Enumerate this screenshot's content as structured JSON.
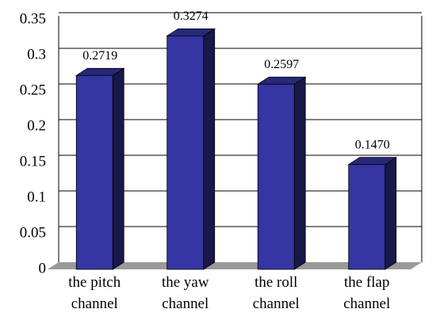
{
  "chart_data": {
    "type": "bar3d",
    "categories": [
      "the pitch\nchannel",
      "the yaw\nchannel",
      "the roll\nchannel",
      "the flap\nchannel"
    ],
    "values": [
      0.2719,
      0.3274,
      0.2597,
      0.147
    ],
    "value_labels": [
      "0.2719",
      "0.3274",
      "0.2597",
      "0.1470"
    ],
    "color": "#3535a3",
    "ylim": [
      0,
      0.35
    ],
    "yticks": [
      0,
      0.05,
      0.1,
      0.15,
      0.2,
      0.25,
      0.3,
      0.35
    ],
    "grid": true
  }
}
